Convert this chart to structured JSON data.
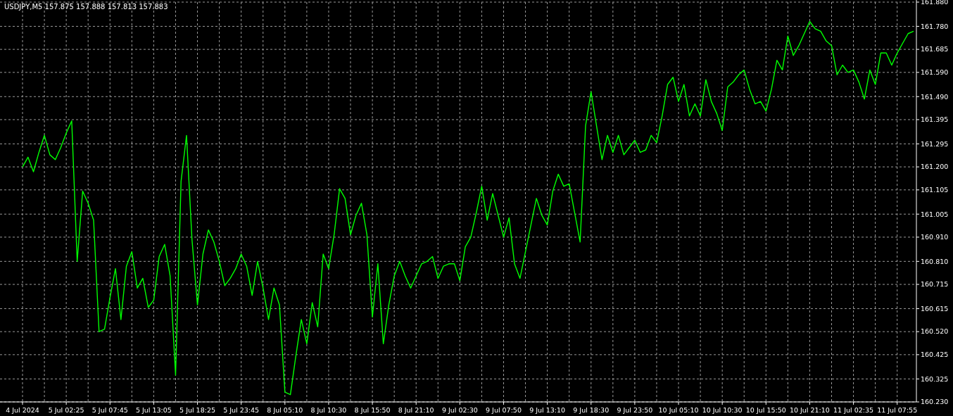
{
  "chart_data": {
    "type": "line",
    "title": "USDJPY,M5  157.875 157.888 157.813 157.883",
    "categories": [
      "4 Jul 2024",
      null,
      null,
      null,
      null,
      null,
      null,
      null,
      "5 Jul 02:25",
      null,
      null,
      null,
      null,
      null,
      null,
      null,
      "5 Jul 07:45",
      null,
      null,
      null,
      null,
      null,
      null,
      null,
      "5 Jul 13:05",
      null,
      null,
      null,
      null,
      null,
      null,
      null,
      "5 Jul 18:25",
      null,
      null,
      null,
      null,
      null,
      null,
      null,
      "5 Jul 23:45",
      null,
      null,
      null,
      null,
      null,
      null,
      null,
      "8 Jul 05:10",
      null,
      null,
      null,
      null,
      null,
      null,
      null,
      "8 Jul 10:30",
      null,
      null,
      null,
      null,
      null,
      null,
      null,
      "8 Jul 15:50",
      null,
      null,
      null,
      null,
      null,
      null,
      null,
      "8 Jul 21:10",
      null,
      null,
      null,
      null,
      null,
      null,
      null,
      "9 Jul 02:30",
      null,
      null,
      null,
      null,
      null,
      null,
      null,
      "9 Jul 07:50",
      null,
      null,
      null,
      null,
      null,
      null,
      null,
      "9 Jul 13:10",
      null,
      null,
      null,
      null,
      null,
      null,
      null,
      "9 Jul 18:30",
      null,
      null,
      null,
      null,
      null,
      null,
      null,
      "9 Jul 23:50",
      null,
      null,
      null,
      null,
      null,
      null,
      null,
      "10 Jul 05:10",
      null,
      null,
      null,
      null,
      null,
      null,
      null,
      "10 Jul 10:30",
      null,
      null,
      null,
      null,
      null,
      null,
      null,
      "10 Jul 15:50",
      null,
      null,
      null,
      null,
      null,
      null,
      null,
      "10 Jul 21:10",
      null,
      null,
      null,
      null,
      null,
      null,
      null,
      "11 Jul 02:35",
      null,
      null,
      null,
      null,
      null,
      null,
      null,
      "11 Jul 07:55",
      null,
      null,
      null
    ],
    "series": [
      {
        "color": "#00ff00",
        "values": [
          161.2,
          161.24,
          161.18,
          161.26,
          161.33,
          161.25,
          161.23,
          161.28,
          161.34,
          161.39,
          160.81,
          161.1,
          161.05,
          160.98,
          160.52,
          160.53,
          160.66,
          160.78,
          160.57,
          160.79,
          160.85,
          160.7,
          160.74,
          160.62,
          160.65,
          160.83,
          160.88,
          160.75,
          160.34,
          161.14,
          161.33,
          160.9,
          160.63,
          160.84,
          160.94,
          160.89,
          160.81,
          160.71,
          160.74,
          160.78,
          160.84,
          160.79,
          160.67,
          160.81,
          160.7,
          160.57,
          160.7,
          160.63,
          160.27,
          160.26,
          160.42,
          160.57,
          160.47,
          160.64,
          160.54,
          160.84,
          160.78,
          160.92,
          161.11,
          161.07,
          160.92,
          161.0,
          161.05,
          160.92,
          160.58,
          160.8,
          160.47,
          160.63,
          160.75,
          160.81,
          160.75,
          160.7,
          160.75,
          160.8,
          160.81,
          160.83,
          160.74,
          160.79,
          160.8,
          160.8,
          160.73,
          160.87,
          160.91,
          161.01,
          161.12,
          160.98,
          161.09,
          161.0,
          160.91,
          160.99,
          160.8,
          160.74,
          160.85,
          160.96,
          161.07,
          161.0,
          160.96,
          161.1,
          161.17,
          161.12,
          161.13,
          161.01,
          160.89,
          161.37,
          161.51,
          161.37,
          161.23,
          161.33,
          161.26,
          161.33,
          161.25,
          161.28,
          161.31,
          161.26,
          161.27,
          161.33,
          161.3,
          161.41,
          161.54,
          161.57,
          161.47,
          161.54,
          161.41,
          161.46,
          161.41,
          161.56,
          161.47,
          161.42,
          161.35,
          161.53,
          161.55,
          161.58,
          161.6,
          161.52,
          161.46,
          161.47,
          161.43,
          161.52,
          161.64,
          161.6,
          161.74,
          161.66,
          161.7,
          161.75,
          161.8,
          161.77,
          161.76,
          161.72,
          161.7,
          161.58,
          161.62,
          161.59,
          161.6,
          161.55,
          161.48,
          161.6,
          161.54,
          161.67,
          161.67,
          161.62,
          161.67,
          161.71,
          161.75,
          161.76
        ]
      }
    ],
    "ylim": [
      160.23,
      161.88
    ],
    "yticks": [
      {
        "value": 160.23,
        "label": "160.230"
      },
      {
        "value": 160.325,
        "label": "160.325"
      },
      {
        "value": 160.425,
        "label": "160.425"
      },
      {
        "value": 160.52,
        "label": "160.520"
      },
      {
        "value": 160.615,
        "label": "160.615"
      },
      {
        "value": 160.715,
        "label": "160.715"
      },
      {
        "value": 160.81,
        "label": "160.810"
      },
      {
        "value": 160.91,
        "label": "160.910"
      },
      {
        "value": 161.005,
        "label": "161.005"
      },
      {
        "value": 161.105,
        "label": "161.105"
      },
      {
        "value": 161.2,
        "label": "161.200"
      },
      {
        "value": 161.295,
        "label": "161.295"
      },
      {
        "value": 161.395,
        "label": "161.395"
      },
      {
        "value": 161.49,
        "label": "161.490"
      },
      {
        "value": 161.59,
        "label": "161.590"
      },
      {
        "value": 161.685,
        "label": "161.685"
      },
      {
        "value": 161.78,
        "label": "161.780"
      },
      {
        "value": 161.88,
        "label": "161.880"
      }
    ],
    "grid": true,
    "line_style": "solid",
    "marker": "none"
  }
}
